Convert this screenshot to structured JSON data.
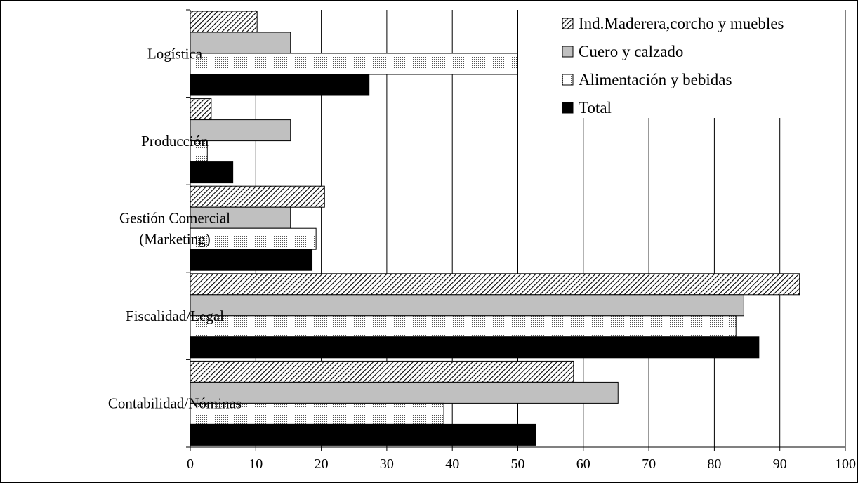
{
  "chart_data": {
    "type": "bar",
    "orientation": "horizontal",
    "categories": [
      "Contabilidad/Nóminas",
      "Fiscalidad/Legal",
      "Gestión Comercial (Marketing)",
      "Producción",
      "Logística"
    ],
    "category_lines": [
      [
        "Contabilidad/Nóminas"
      ],
      [
        "Fiscalidad/Legal"
      ],
      [
        "Gestión Comercial",
        "(Marketing)"
      ],
      [
        "Producción"
      ],
      [
        "Logística"
      ]
    ],
    "series": [
      {
        "name": "Ind.Maderera,corcho y muebles",
        "values": [
          58.5,
          93.0,
          20.5,
          3.2,
          10.2
        ],
        "fill": "hatch"
      },
      {
        "name": "Cuero y calzado",
        "values": [
          65.3,
          84.5,
          15.3,
          15.3,
          15.3
        ],
        "fill": "#c0c0c0"
      },
      {
        "name": "Alimentación y bebidas",
        "values": [
          38.7,
          83.3,
          19.2,
          2.6,
          49.9
        ],
        "fill": "dotted"
      },
      {
        "name": "Total",
        "values": [
          52.7,
          86.8,
          18.6,
          6.5,
          27.3
        ],
        "fill": "#000000"
      }
    ],
    "x_ticks": [
      "0",
      "10",
      "20",
      "30",
      "40",
      "50",
      "60",
      "70",
      "80",
      "90",
      "100"
    ],
    "xlim": [
      0,
      100
    ],
    "grid": "vertical",
    "legend_position": "top-right"
  }
}
